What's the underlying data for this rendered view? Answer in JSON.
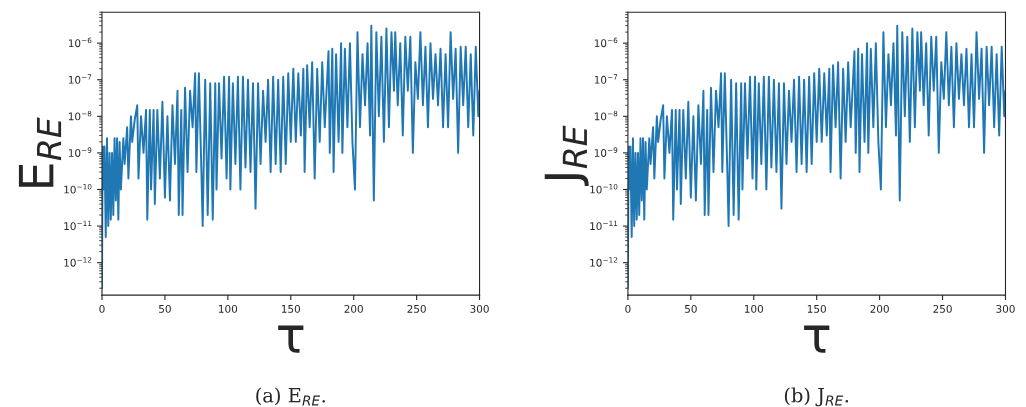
{
  "chart_data": [
    {
      "type": "line",
      "title": "(a) E$_{RE}$.",
      "xlabel": "τ",
      "ylabel": "E$_{RE}$",
      "log": "y",
      "xlim": [
        0,
        300
      ],
      "xticks": [
        0,
        50,
        100,
        150,
        200,
        250,
        300
      ],
      "ylim": [
        1.3e-13,
        7e-06
      ],
      "yticks": [
        {
          "value": 1e-12,
          "label": "10$^{−12}$"
        },
        {
          "value": 1e-11,
          "label": "10$^{−11}$"
        },
        {
          "value": 1e-10,
          "label": "10$^{−10}$"
        },
        {
          "value": 1e-09,
          "label": "10$^{−9}$"
        },
        {
          "value": 1e-08,
          "label": "10$^{−8}$"
        },
        {
          "value": 1e-07,
          "label": "10$^{−7}$"
        },
        {
          "value": 1e-06,
          "label": "10$^{−6}$"
        }
      ],
      "x": [
        0,
        0.5,
        1,
        2,
        3,
        4,
        5,
        6,
        7,
        8,
        9,
        10,
        11,
        12,
        13,
        14,
        15,
        17,
        18,
        20,
        21,
        23,
        24,
        26,
        28,
        29,
        31,
        33,
        35,
        36,
        38,
        39,
        41,
        42,
        44,
        46,
        48,
        50,
        52,
        54,
        56,
        58,
        60,
        61,
        63,
        64,
        66,
        68,
        70,
        72,
        74,
        75,
        77,
        79,
        80,
        82,
        84,
        86,
        88,
        90,
        91,
        93,
        95,
        97,
        99,
        101,
        102,
        104,
        106,
        108,
        110,
        112,
        114,
        116,
        118,
        120,
        122,
        124,
        126,
        128,
        130,
        132,
        134,
        136,
        138,
        140,
        142,
        144,
        146,
        148,
        150,
        152,
        154,
        156,
        158,
        160,
        161,
        163,
        165,
        167,
        169,
        171,
        173,
        175,
        177,
        180,
        181,
        183,
        184,
        186,
        188,
        190,
        191,
        193,
        195,
        197,
        199,
        201,
        203,
        205,
        207,
        209,
        211,
        213,
        214,
        216,
        218,
        220,
        222,
        224,
        226,
        228,
        230,
        232,
        233,
        235,
        237,
        239,
        241,
        243,
        245,
        247,
        249,
        251,
        253,
        255,
        257,
        259,
        261,
        263,
        265,
        267,
        269,
        271,
        273,
        275,
        277,
        279,
        281,
        283,
        285,
        287,
        289,
        291,
        293,
        295,
        297,
        299,
        300
      ],
      "series": [
        {
          "color": "#1f77b4",
          "values": [
            2e-13,
            1.5e-09,
            1e-10,
            1.5e-09,
            5e-12,
            2.5e-09,
            1e-11,
            1e-09,
            1.5e-11,
            1e-09,
            2e-11,
            2.5e-09,
            5e-11,
            2.5e-09,
            1.5e-11,
            2e-09,
            1e-10,
            2.5e-09,
            5e-10,
            5e-09,
            2e-10,
            1e-08,
            2e-09,
            8e-09,
            2e-08,
            2e-10,
            1e-08,
            1e-09,
            1.5e-08,
            1.5e-11,
            1.5e-08,
            1e-10,
            1.5e-08,
            4e-11,
            1.5e-08,
            2e-10,
            2.5e-08,
            6e-11,
            1e-08,
            5e-11,
            2e-08,
            5e-10,
            5e-08,
            2e-11,
            1.5e-08,
            2e-11,
            6e-08,
            3e-10,
            5e-08,
            5e-09,
            1.5e-07,
            3e-10,
            1.5e-07,
            3e-10,
            1e-11,
            1e-07,
            2e-11,
            8e-08,
            1.5e-11,
            8e-08,
            1e-10,
            8e-08,
            7e-10,
            1.2e-07,
            2e-10,
            1.2e-07,
            1e-10,
            8e-08,
            5e-10,
            1.2e-07,
            1e-10,
            1.2e-07,
            4e-10,
            1e-07,
            3e-10,
            8e-08,
            3e-11,
            8e-08,
            5e-10,
            5e-08,
            2e-09,
            1e-07,
            3e-10,
            1.2e-07,
            5e-10,
            1e-07,
            3e-10,
            1.2e-07,
            5e-10,
            1.5e-07,
            2e-09,
            2e-07,
            2e-09,
            1.5e-07,
            3e-09,
            2e-07,
            3e-10,
            2.5e-07,
            5e-09,
            3e-07,
            2e-10,
            2e-07,
            2e-09,
            3e-07,
            5e-09,
            6e-07,
            1e-09,
            7e-07,
            3e-10,
            5e-07,
            2e-09,
            1e-06,
            1e-09,
            7e-07,
            5e-09,
            1e-06,
            2e-09,
            1e-10,
            2e-06,
            5e-09,
            5e-07,
            2e-08,
            1e-06,
            3e-09,
            3e-06,
            5e-11,
            2e-06,
            1e-08,
            1.5e-06,
            2e-09,
            2.5e-06,
            5e-09,
            2e-06,
            5e-08,
            2e-06,
            2e-08,
            1e-06,
            3e-09,
            1.5e-06,
            5e-08,
            1.5e-06,
            1e-09,
            3e-07,
            3e-08,
            2e-06,
            2e-08,
            8e-07,
            5e-09,
            1e-06,
            3e-08,
            5e-07,
            2e-08,
            7e-07,
            5e-09,
            5e-07,
            5e-09,
            2e-06,
            3e-08,
            7e-07,
            1e-09,
            8e-07,
            2e-08,
            8e-07,
            5e-09,
            5e-07,
            3e-09,
            8e-07,
            1e-08,
            5e-08
          ]
        }
      ]
    },
    {
      "type": "line",
      "title": "(b) J$_{RE}$.",
      "xlabel": "τ",
      "ylabel": "J$_{RE}$",
      "log": "y",
      "xlim": [
        0,
        300
      ],
      "xticks": [
        0,
        50,
        100,
        150,
        200,
        250,
        300
      ],
      "ylim": [
        1.3e-13,
        7e-06
      ],
      "yticks": [
        {
          "value": 1e-12,
          "label": "10$^{−12}$"
        },
        {
          "value": 1e-11,
          "label": "10$^{−11}$"
        },
        {
          "value": 1e-10,
          "label": "10$^{−10}$"
        },
        {
          "value": 1e-09,
          "label": "10$^{−9}$"
        },
        {
          "value": 1e-08,
          "label": "10$^{−8}$"
        },
        {
          "value": 1e-07,
          "label": "10$^{−7}$"
        },
        {
          "value": 1e-06,
          "label": "10$^{−6}$"
        }
      ],
      "x": [
        0,
        0.5,
        1,
        2,
        3,
        4,
        5,
        6,
        7,
        8,
        9,
        10,
        11,
        12,
        13,
        14,
        15,
        17,
        18,
        20,
        21,
        23,
        24,
        26,
        28,
        29,
        31,
        33,
        35,
        36,
        38,
        39,
        41,
        42,
        44,
        46,
        48,
        50,
        52,
        54,
        56,
        58,
        60,
        61,
        63,
        64,
        66,
        68,
        70,
        72,
        74,
        75,
        77,
        79,
        80,
        82,
        84,
        86,
        88,
        90,
        91,
        93,
        95,
        97,
        99,
        101,
        102,
        104,
        106,
        108,
        110,
        112,
        114,
        116,
        118,
        120,
        122,
        124,
        126,
        128,
        130,
        132,
        134,
        136,
        138,
        140,
        142,
        144,
        146,
        148,
        150,
        152,
        154,
        156,
        158,
        160,
        161,
        163,
        165,
        167,
        169,
        171,
        173,
        175,
        177,
        180,
        181,
        183,
        184,
        186,
        188,
        190,
        191,
        193,
        195,
        197,
        199,
        201,
        203,
        205,
        207,
        209,
        211,
        213,
        214,
        216,
        218,
        220,
        222,
        224,
        226,
        228,
        230,
        232,
        233,
        235,
        237,
        239,
        241,
        243,
        245,
        247,
        249,
        251,
        253,
        255,
        257,
        259,
        261,
        263,
        265,
        267,
        269,
        271,
        273,
        275,
        277,
        279,
        281,
        283,
        285,
        287,
        289,
        291,
        293,
        295,
        297,
        299,
        300
      ],
      "series": [
        {
          "color": "#1f77b4",
          "values": [
            2e-13,
            1.5e-09,
            1e-10,
            1.5e-09,
            5e-12,
            2.5e-09,
            1e-11,
            1e-09,
            1.5e-11,
            1e-09,
            2e-11,
            2.5e-09,
            5e-11,
            2.5e-09,
            1.5e-11,
            2e-09,
            1e-10,
            2.5e-09,
            5e-10,
            5e-09,
            2e-10,
            1e-08,
            2e-09,
            8e-09,
            2e-08,
            2e-10,
            1e-08,
            1e-09,
            1.5e-08,
            1.5e-11,
            1.5e-08,
            1e-10,
            1.5e-08,
            4e-11,
            1.5e-08,
            2e-10,
            2.5e-08,
            6e-11,
            1e-08,
            5e-11,
            2e-08,
            5e-10,
            5e-08,
            2e-11,
            1.5e-08,
            2e-11,
            6e-08,
            3e-10,
            5e-08,
            5e-09,
            1.5e-07,
            3e-10,
            1.5e-07,
            3e-10,
            1e-11,
            1e-07,
            2e-11,
            8e-08,
            1.5e-11,
            8e-08,
            1e-10,
            8e-08,
            7e-10,
            1.2e-07,
            2e-10,
            1.2e-07,
            1e-10,
            8e-08,
            5e-10,
            1.2e-07,
            1e-10,
            1.2e-07,
            4e-10,
            1e-07,
            3e-10,
            8e-08,
            3e-11,
            8e-08,
            5e-10,
            5e-08,
            2e-09,
            1e-07,
            3e-10,
            1.2e-07,
            5e-10,
            1e-07,
            3e-10,
            1.2e-07,
            5e-10,
            1.5e-07,
            2e-09,
            2e-07,
            2e-09,
            1.5e-07,
            3e-09,
            2e-07,
            3e-10,
            2.5e-07,
            5e-09,
            3e-07,
            2e-10,
            2e-07,
            2e-09,
            3e-07,
            5e-09,
            6e-07,
            1e-09,
            7e-07,
            3e-10,
            5e-07,
            2e-09,
            1e-06,
            1e-09,
            7e-07,
            5e-09,
            1e-06,
            2e-09,
            1e-10,
            2e-06,
            5e-09,
            5e-07,
            2e-08,
            1e-06,
            3e-09,
            3e-06,
            5e-11,
            2e-06,
            1e-08,
            1.5e-06,
            2e-09,
            2.5e-06,
            5e-09,
            2e-06,
            5e-08,
            2e-06,
            2e-08,
            1e-06,
            3e-09,
            1.5e-06,
            5e-08,
            1.5e-06,
            1e-09,
            3e-07,
            3e-08,
            2e-06,
            2e-08,
            8e-07,
            5e-09,
            1e-06,
            3e-08,
            5e-07,
            2e-08,
            7e-07,
            5e-09,
            5e-07,
            5e-09,
            2e-06,
            3e-08,
            7e-07,
            1e-09,
            8e-07,
            2e-08,
            8e-07,
            5e-09,
            5e-07,
            3e-09,
            8e-07,
            1e-08,
            5e-08
          ]
        }
      ]
    }
  ]
}
